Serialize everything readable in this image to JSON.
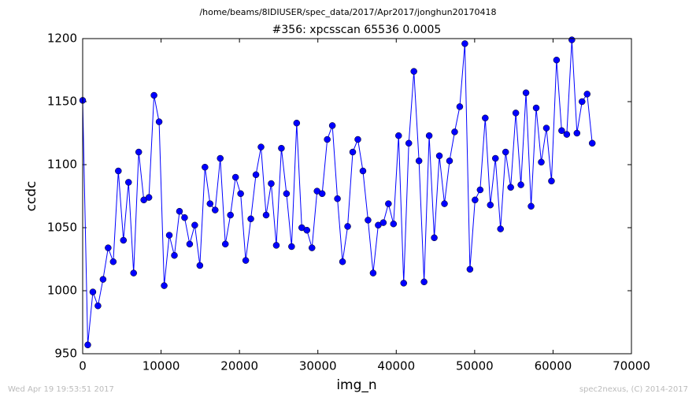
{
  "chart_data": {
    "type": "line",
    "suptitle": "/home/beams/8IDIUSER/spec_data/2017/Apr2017/jonghun20170418",
    "title": "#356: xpcsscan 65536 0.0005",
    "x_label": "img_n",
    "y_label": "ccdc",
    "footer_left": "Wed Apr 19 19:53:51 2017",
    "footer_right": "spec2nexus, (C) 2014-2017",
    "x": [
      0,
      650,
      1300,
      1950,
      2600,
      3250,
      3900,
      4550,
      5200,
      5850,
      6500,
      7150,
      7800,
      8450,
      9100,
      9750,
      10400,
      11050,
      11700,
      12350,
      13000,
      13650,
      14300,
      14950,
      15600,
      16250,
      16900,
      17550,
      18200,
      18850,
      19500,
      20150,
      20800,
      21450,
      22100,
      22750,
      23400,
      24050,
      24700,
      25350,
      26000,
      26650,
      27300,
      27950,
      28600,
      29250,
      29900,
      30550,
      31200,
      31850,
      32500,
      33150,
      33800,
      34450,
      35100,
      35750,
      36400,
      37050,
      37700,
      38350,
      39000,
      39650,
      40300,
      40950,
      41600,
      42250,
      42900,
      43550,
      44200,
      44850,
      45500,
      46150,
      46800,
      47450,
      48100,
      48750,
      49400,
      50050,
      50700,
      51350,
      52000,
      52650,
      53300,
      53950,
      54600,
      55250,
      55900,
      56550,
      57200,
      57850,
      58500,
      59150,
      59800,
      60450,
      61100,
      61750,
      62400,
      63050,
      63700,
      64350,
      65000
    ],
    "series": [
      {
        "color": "#0000ff",
        "values": [
          1151,
          957,
          999,
          988,
          1009,
          1034,
          1023,
          1095,
          1040,
          1086,
          1014,
          1110,
          1072,
          1074,
          1155,
          1134,
          1004,
          1044,
          1028,
          1063,
          1058,
          1037,
          1052,
          1020,
          1098,
          1069,
          1064,
          1105,
          1037,
          1060,
          1090,
          1077,
          1024,
          1057,
          1092,
          1114,
          1060,
          1085,
          1036,
          1113,
          1077,
          1035,
          1133,
          1050,
          1048,
          1034,
          1079,
          1077,
          1120,
          1131,
          1073,
          1023,
          1051,
          1110,
          1120,
          1095,
          1056,
          1014,
          1052,
          1054,
          1069,
          1053,
          1123,
          1006,
          1117,
          1174,
          1103,
          1007,
          1123,
          1042,
          1107,
          1069,
          1103,
          1126,
          1146,
          1196,
          1017,
          1072,
          1080,
          1137,
          1068,
          1105,
          1049,
          1110,
          1082,
          1141,
          1084,
          1157,
          1067,
          1145,
          1102,
          1129,
          1087,
          1183,
          1127,
          1124,
          1199,
          1125,
          1150,
          1156,
          1117
        ]
      }
    ],
    "xlim": [
      0,
      70000
    ],
    "xticks": [
      0,
      10000,
      20000,
      30000,
      40000,
      50000,
      60000,
      70000
    ],
    "ylim": [
      950,
      1200
    ],
    "yticks": [
      950,
      1000,
      1050,
      1100,
      1150,
      1200
    ]
  }
}
